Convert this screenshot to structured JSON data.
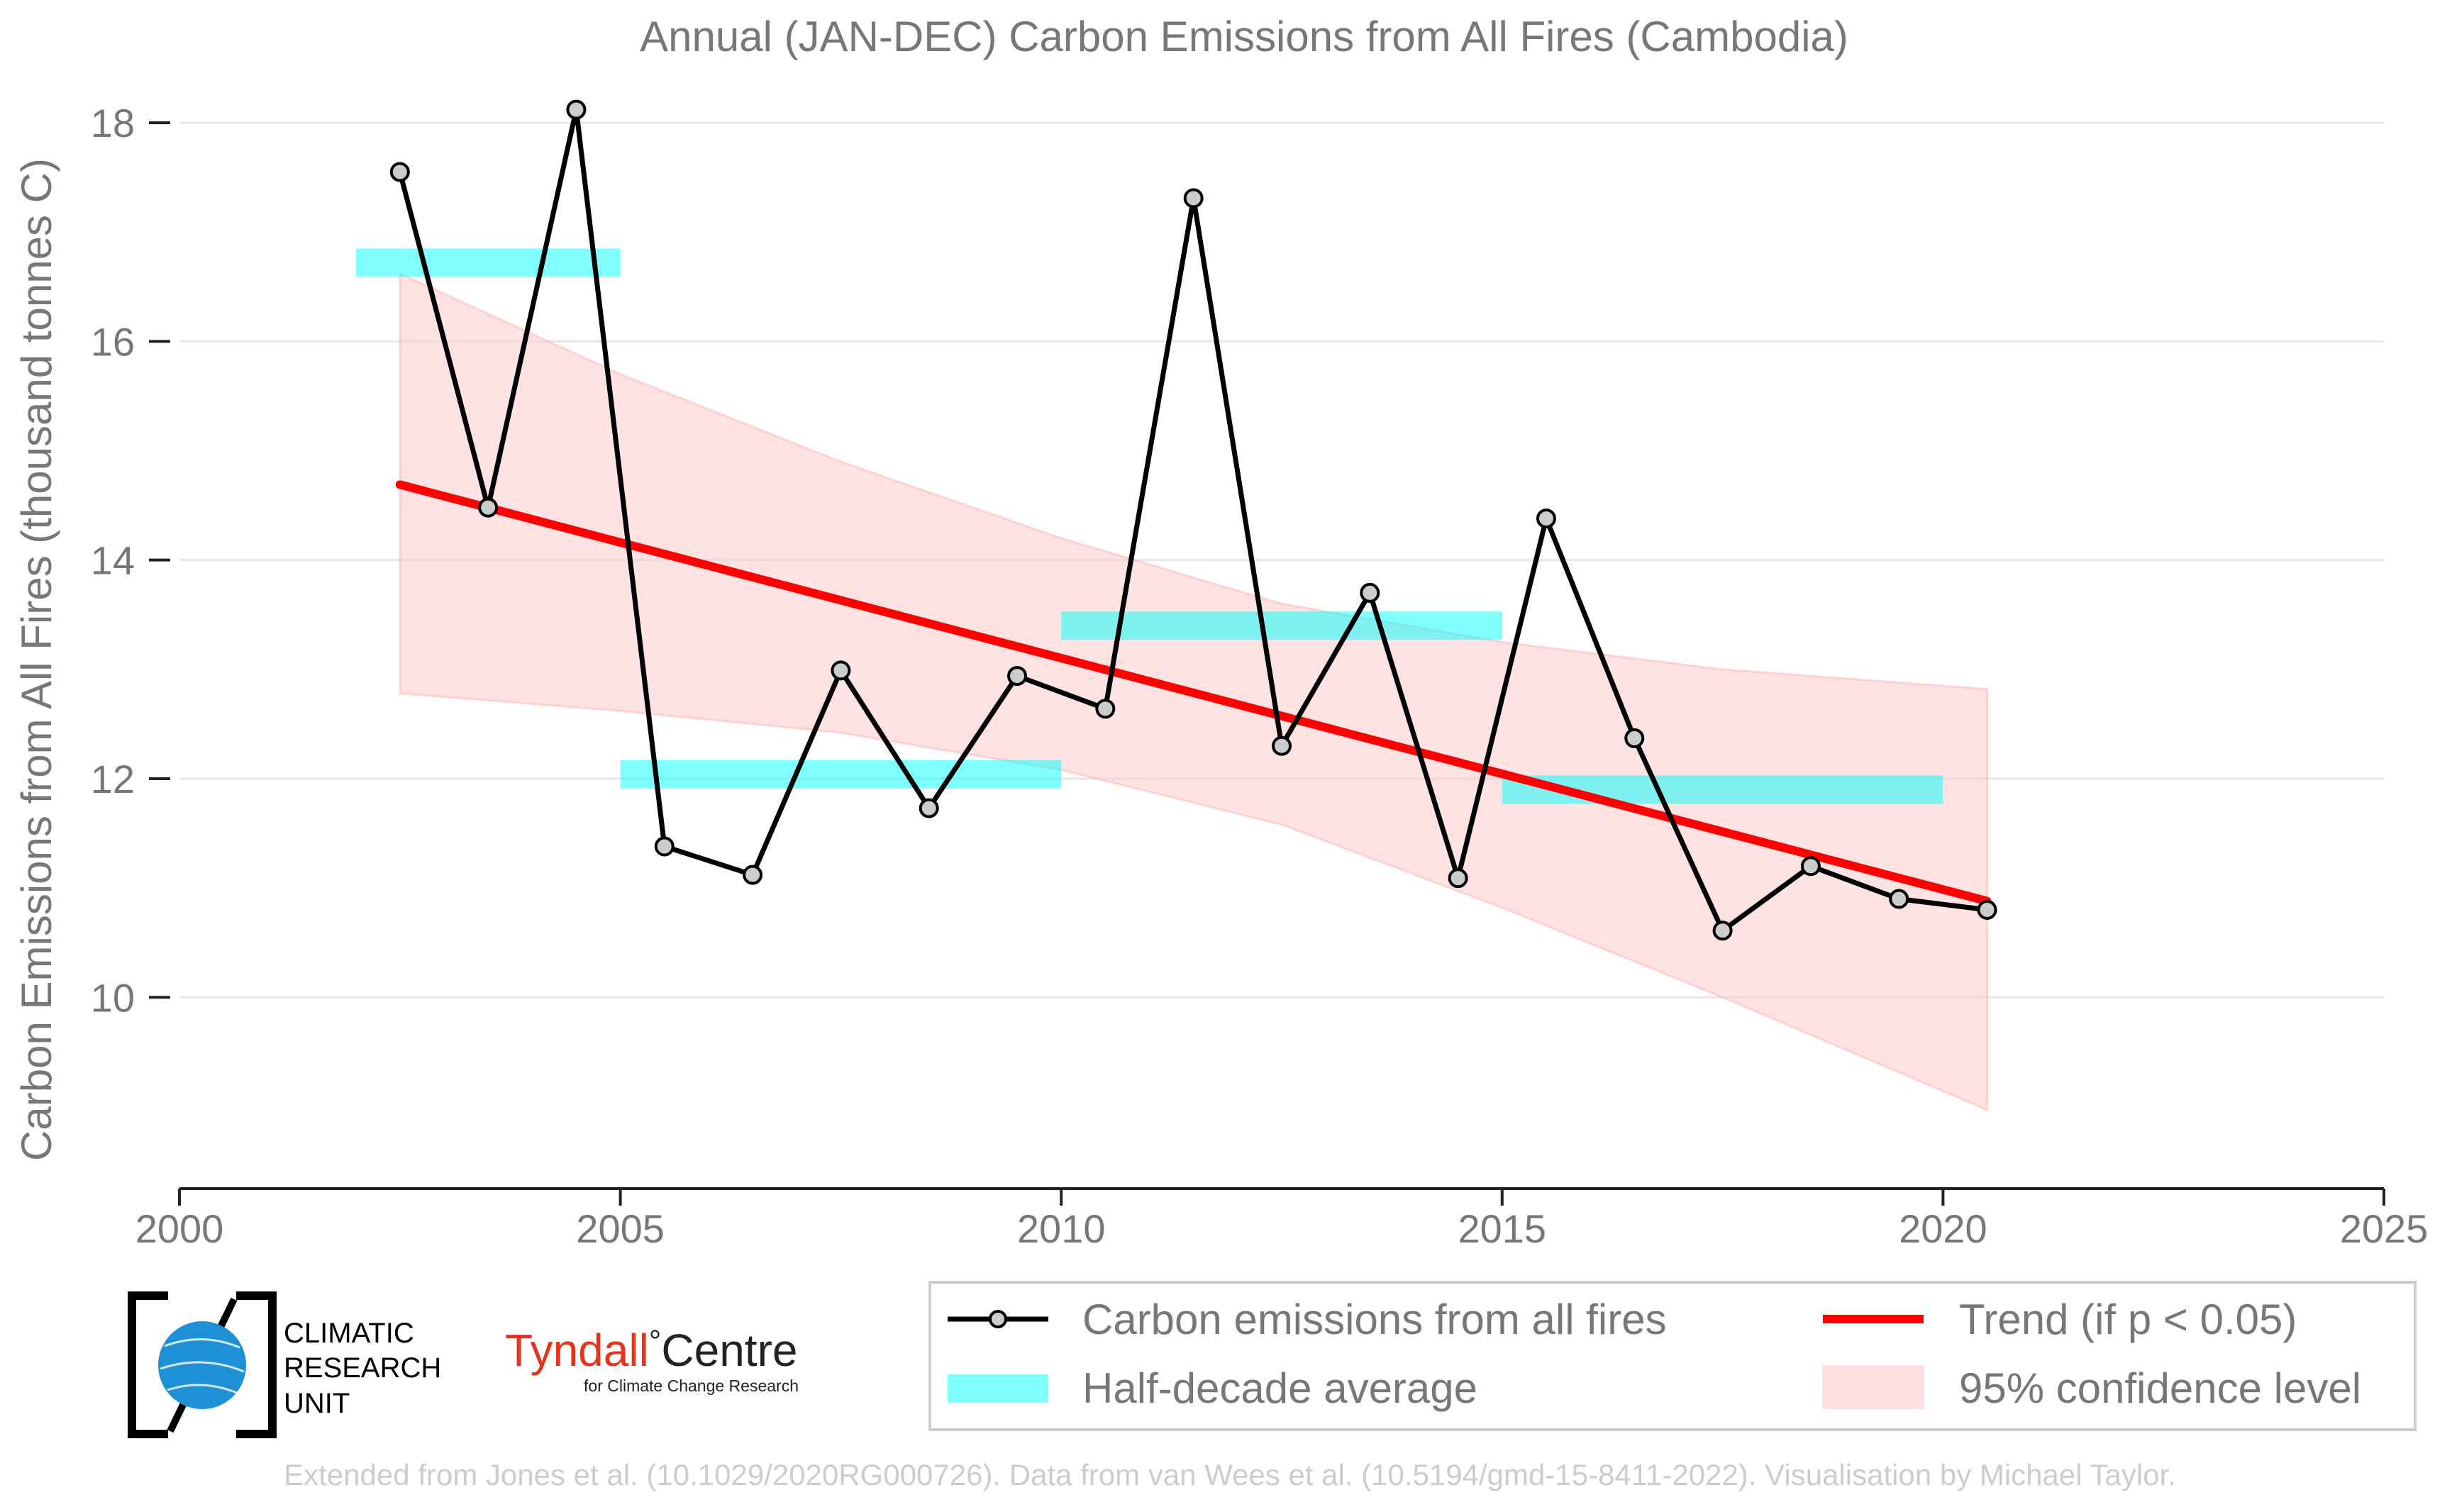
{
  "chart_data": {
    "type": "line",
    "title": "Annual (JAN-DEC) Carbon Emissions from All Fires (Cambodia)",
    "xlabel": "",
    "ylabel": "Carbon Emissions from All Fires (thousand tonnes C)",
    "xlim": [
      2000,
      2025
    ],
    "ylim": [
      8.25,
      18.15
    ],
    "x_ticks": [
      2000,
      2005,
      2010,
      2015,
      2020,
      2025
    ],
    "y_ticks": [
      10,
      12,
      14,
      16,
      18
    ],
    "grid": "horizontal",
    "legend_placement": "bottom-right",
    "series": [
      {
        "name": "Carbon emissions from all fires",
        "color": "#000000",
        "marker_fill": "#cccccc",
        "x": [
          2002.5,
          2003.5,
          2004.5,
          2005.5,
          2006.5,
          2007.5,
          2008.5,
          2009.5,
          2010.5,
          2011.5,
          2012.5,
          2013.5,
          2014.5,
          2015.5,
          2016.5,
          2017.5,
          2018.5,
          2019.5,
          2020.5
        ],
        "values": [
          17.55,
          14.48,
          18.12,
          11.38,
          11.12,
          12.99,
          11.73,
          12.94,
          12.64,
          17.31,
          12.3,
          13.7,
          11.09,
          14.38,
          12.37,
          10.61,
          11.2,
          10.9,
          10.8
        ]
      }
    ],
    "half_decade_average": {
      "name": "Half-decade average",
      "color": "#00ffff",
      "segments": [
        {
          "x": [
            2002,
            2005
          ],
          "value": 16.72
        },
        {
          "x": [
            2005,
            2010
          ],
          "value": 12.04
        },
        {
          "x": [
            2010,
            2015
          ],
          "value": 13.4
        },
        {
          "x": [
            2015,
            2020
          ],
          "value": 11.9
        }
      ]
    },
    "trend": {
      "name": "Trend (if p < 0.05)",
      "color": "#ff0000",
      "x": [
        2002.5,
        2020.5
      ],
      "values": [
        14.69,
        10.88
      ]
    },
    "confidence": {
      "name": "95% confidence level",
      "color": "#ffcccc",
      "x": [
        2002.5,
        2005,
        2007.5,
        2010,
        2012.5,
        2015,
        2017.5,
        2020.5
      ],
      "upper": [
        16.62,
        15.7,
        14.9,
        14.2,
        13.6,
        13.25,
        13.0,
        12.82
      ],
      "lower": [
        12.78,
        12.62,
        12.42,
        12.08,
        11.58,
        10.82,
        10.0,
        8.97
      ]
    }
  },
  "logos": {
    "cru_lines": [
      "CLIMATIC",
      "RESEARCH",
      "UNIT"
    ],
    "tyndall_name": "Tyndall",
    "tyndall_degree": "°",
    "tyndall_centre": "Centre",
    "tyndall_sub": "for Climate Change Research"
  },
  "footer": {
    "credit": "Extended from Jones et al. (10.1029/2020RG000726). Data from van Wees et al. (10.5194/gmd-15-8411-2022). Visualisation by Michael Taylor."
  },
  "colors": {
    "text": "#777777",
    "axis": "#222222",
    "grid": "#e6e6e6",
    "footer": "#cccccc",
    "cru_blue": "#1e90d6",
    "tyndall_red": "#e8331c"
  }
}
